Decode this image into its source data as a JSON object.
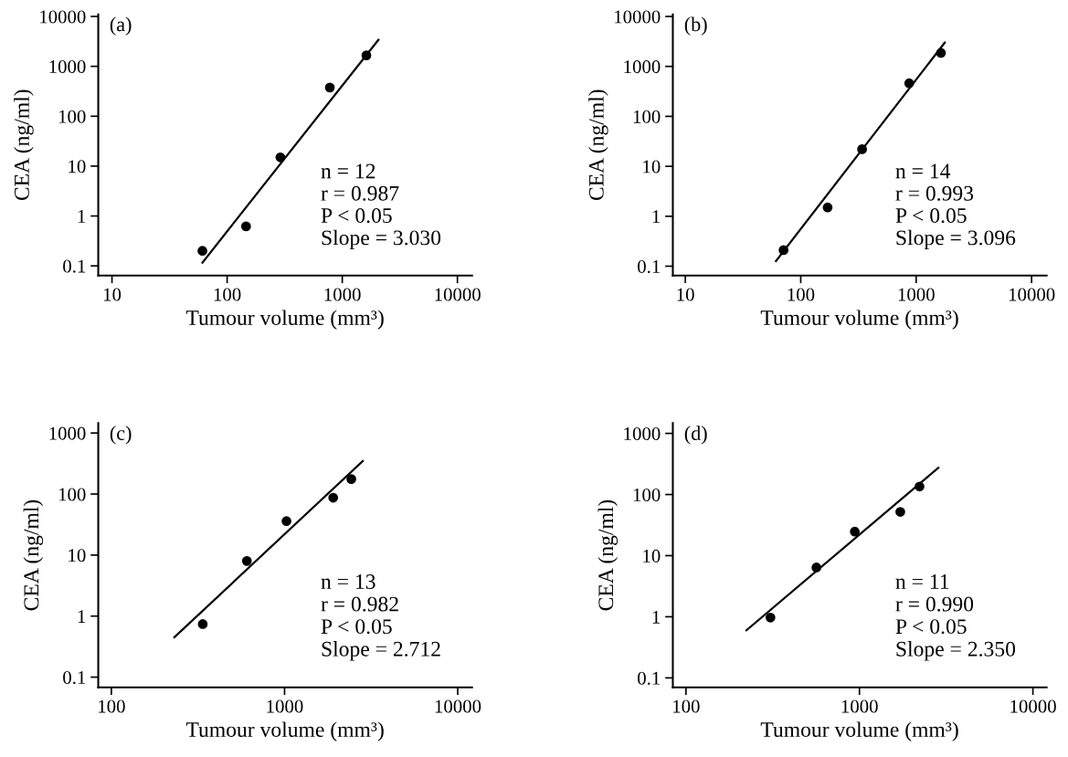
{
  "chart_data": [
    {
      "type": "scatter",
      "xlabel": "Tumour volume (mm³)",
      "ylabel": "CEA (ng/ml)",
      "log": "xy",
      "marker": "circle",
      "xlim": [
        7.6,
        13400
      ],
      "ylim": [
        0.064,
        11000
      ],
      "xticks": [
        10,
        100,
        1000,
        10000
      ],
      "yticks": [
        0.1,
        1,
        10,
        100,
        1000,
        10000
      ],
      "series": [
        {
          "color": "#000000",
          "x": [
            61,
            146,
            290,
            780,
            1620
          ],
          "values": [
            0.2,
            0.62,
            15,
            376,
            1660
          ]
        },
        {
          "type": "line",
          "color": "#000000",
          "marker": "none",
          "x": [
            61,
            2060
          ],
          "values": [
            0.116,
            3400
          ]
        }
      ],
      "annotations": [
        "(a)",
        "n = 12",
        "r = 0.987",
        "P < 0.05",
        "Slope = 3.030"
      ]
    },
    {
      "type": "scatter",
      "xlabel": "Tumour volume (mm³)",
      "ylabel": "CEA (ng/ml)",
      "log": "xy",
      "marker": "circle",
      "xlim": [
        7.8,
        13500
      ],
      "ylim": [
        0.065,
        11000
      ],
      "xticks": [
        10,
        100,
        1000,
        10000
      ],
      "yticks": [
        0.1,
        1,
        10,
        100,
        1000,
        10000
      ],
      "series": [
        {
          "color": "#000000",
          "x": [
            71,
            171,
            340,
            870,
            1640
          ],
          "values": [
            0.21,
            1.5,
            22,
            460,
            1860
          ]
        },
        {
          "type": "line",
          "color": "#000000",
          "marker": "none",
          "x": [
            61,
            1770
          ],
          "values": [
            0.127,
            3000
          ]
        }
      ],
      "annotations": [
        "(b)",
        "n = 14",
        "r = 0.993",
        "P < 0.05",
        "Slope = 3.096"
      ]
    },
    {
      "type": "scatter",
      "xlabel": "Tumour volume (mm³)",
      "ylabel": "CEA (ng/ml)",
      "log": "xy",
      "marker": "circle",
      "xlim": [
        84,
        12100
      ],
      "ylim": [
        0.068,
        1450
      ],
      "xticks": [
        100,
        1000,
        10000
      ],
      "yticks": [
        0.1,
        1,
        10,
        100,
        1000
      ],
      "series": [
        {
          "color": "#000000",
          "x": [
            337,
            606,
            1026,
            1910,
            2430
          ],
          "values": [
            0.74,
            8,
            36,
            87,
            176
          ]
        },
        {
          "type": "line",
          "color": "#000000",
          "marker": "none",
          "x": [
            231,
            2830
          ],
          "values": [
            0.45,
            347
          ]
        }
      ],
      "annotations": [
        "(c)",
        "n = 13",
        "r = 0.982",
        "P < 0.05",
        "Slope = 2.712"
      ]
    },
    {
      "type": "scatter",
      "xlabel": "Tumour volume (mm³)",
      "ylabel": "CEA (ng/ml)",
      "log": "xy",
      "marker": "circle",
      "xlim": [
        84,
        12000
      ],
      "ylim": [
        0.07,
        1470
      ],
      "xticks": [
        100,
        1000,
        10000
      ],
      "yticks": [
        0.1,
        1,
        10,
        100,
        1000
      ],
      "series": [
        {
          "color": "#000000",
          "x": [
            307,
            565,
            940,
            1720,
            2220
          ],
          "values": [
            0.97,
            6.4,
            24.7,
            52,
            135
          ]
        },
        {
          "type": "line",
          "color": "#000000",
          "marker": "none",
          "x": [
            223,
            2850
          ],
          "values": [
            0.6,
            274
          ]
        }
      ],
      "annotations": [
        "(d)",
        "n = 11",
        "r = 0.990",
        "P < 0.05",
        "Slope = 2.350"
      ]
    }
  ]
}
